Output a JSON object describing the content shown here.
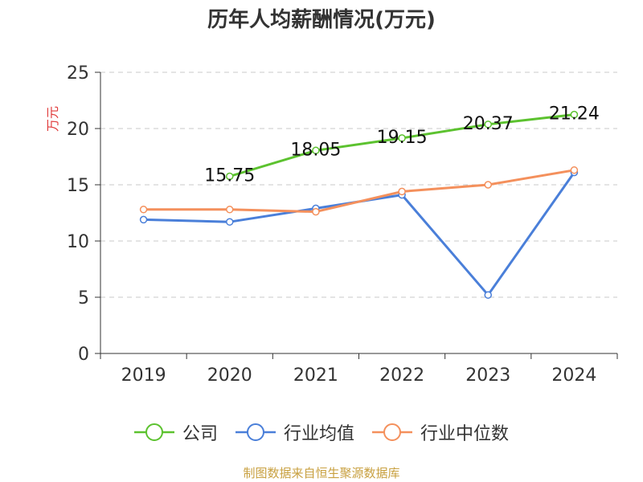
{
  "title": "历年人均薪酬情况(万元)",
  "source": "制图数据来自恒生聚源数据库",
  "chart_data": {
    "type": "line",
    "title": "历年人均薪酬情况(万元)",
    "ylabel": "万元",
    "xlabel": "",
    "categories": [
      "2019",
      "2020",
      "2021",
      "2022",
      "2023",
      "2024"
    ],
    "ylim": [
      0,
      25
    ],
    "yticks": [
      0,
      5,
      10,
      15,
      20,
      25
    ],
    "grid": true,
    "legend_position": "bottom",
    "series": [
      {
        "name": "公司",
        "color": "#5cc22f",
        "values": [
          null,
          15.75,
          18.05,
          19.15,
          20.37,
          21.24
        ],
        "labels": [
          "",
          "15.75",
          "18.05",
          "19.15",
          "20.37",
          "21.24"
        ]
      },
      {
        "name": "行业均值",
        "color": "#4a7fd9",
        "values": [
          11.9,
          11.7,
          12.9,
          14.1,
          5.2,
          16.1
        ],
        "labels": []
      },
      {
        "name": "行业中位数",
        "color": "#f4905c",
        "values": [
          12.8,
          12.8,
          12.6,
          14.4,
          15.0,
          16.3
        ],
        "labels": []
      }
    ]
  }
}
